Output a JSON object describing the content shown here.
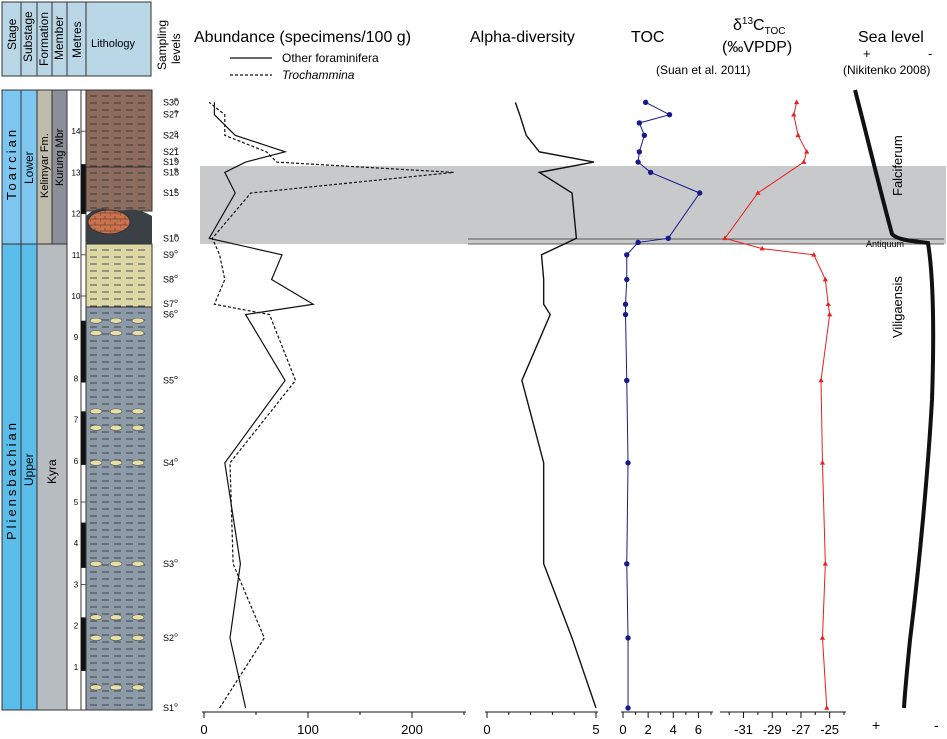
{
  "header": {
    "cols": [
      "Stage",
      "Substage",
      "Formation",
      "Member",
      "Metres"
    ],
    "lithology": "Lithology",
    "sampling": [
      "Sampling",
      "levels"
    ]
  },
  "stages": [
    {
      "name": "Toarcian",
      "substage": "Lower",
      "formation": "Kelimyar Fm.",
      "member": "Kurung Mbr",
      "top": 15,
      "bottom": 11
    },
    {
      "name": "Pliensbachian",
      "substage": "Upper",
      "formation": "Kyra",
      "member": "",
      "top": 11,
      "bottom": 0
    }
  ],
  "samples": [
    {
      "label": "S30",
      "m": 14.7
    },
    {
      "label": "S27",
      "m": 14.4
    },
    {
      "label": "S24",
      "m": 13.9
    },
    {
      "label": "S21",
      "m": 13.5
    },
    {
      "label": "S19",
      "m": 13.25
    },
    {
      "label": "S18",
      "m": 13.0
    },
    {
      "label": "S15",
      "m": 12.5
    },
    {
      "label": "S10",
      "m": 11.4
    },
    {
      "label": "S9",
      "m": 11.0
    },
    {
      "label": "S8",
      "m": 10.4
    },
    {
      "label": "S7",
      "m": 9.8
    },
    {
      "label": "S6",
      "m": 9.55
    },
    {
      "label": "S5",
      "m": 7.95
    },
    {
      "label": "S4",
      "m": 5.95
    },
    {
      "label": "S3",
      "m": 3.5
    },
    {
      "label": "S2",
      "m": 1.7
    },
    {
      "label": "S1",
      "m": 0.0
    }
  ],
  "metre_ticks": [
    1,
    2,
    3,
    4,
    5,
    6,
    7,
    8,
    9,
    10,
    11,
    12,
    13,
    14
  ],
  "panels": {
    "abundance": {
      "title": "Abundance (specimens/100 g)",
      "legend": [
        "Other foraminifera",
        "Trochammina"
      ],
      "ticks": [
        "0",
        "100",
        "200"
      ]
    },
    "alpha": {
      "title": "Alpha-diversity",
      "ticks": [
        "0",
        "5"
      ]
    },
    "toc": {
      "title": "TOC",
      "subtitle": "(Suan et al. 2011)",
      "ticks": [
        "0",
        "2",
        "4",
        "6"
      ]
    },
    "d13c": {
      "title_delta": "δ",
      "title_sup": "13",
      "title_c": "C",
      "title_sub": "TOC",
      "title_unit": "(‰VPDP)",
      "ticks": [
        "-31",
        "-29",
        "-27",
        "-25"
      ]
    },
    "sealevel": {
      "title": "Sea level",
      "subtitle": "(Nikitenko 2008)",
      "plus": "+",
      "minus": "-",
      "zones": [
        "Falciferum",
        "Viligaensis"
      ],
      "marker": "Antiquum"
    }
  },
  "colors": {
    "toc": "#1a1a8c",
    "d13c": "#e82020",
    "band": "#c8c9cb",
    "toarcian": "#7dc6ef",
    "pliens": "#5bbde9",
    "kelimyar": "#bfbbad",
    "kurung": "#8b8f99",
    "kyra": "#b7bcc1"
  },
  "chart_data": [
    {
      "type": "line",
      "title": "Abundance (specimens/100 g)",
      "xlabel": "",
      "ylabel": "Metres",
      "xlim": [
        0,
        250
      ],
      "ylim": [
        0,
        15
      ],
      "series": [
        {
          "name": "Other foraminifera",
          "points": [
            [
              40,
              0
            ],
            [
              25,
              1.7
            ],
            [
              35,
              3.5
            ],
            [
              20,
              5.95
            ],
            [
              78,
              7.95
            ],
            [
              40,
              9.55
            ],
            [
              105,
              9.8
            ],
            [
              65,
              10.4
            ],
            [
              75,
              11.0
            ],
            [
              5,
              11.4
            ],
            [
              30,
              12.5
            ],
            [
              20,
              13.0
            ],
            [
              40,
              13.25
            ],
            [
              78,
              13.5
            ],
            [
              30,
              13.9
            ],
            [
              10,
              14.4
            ],
            [
              10,
              14.7
            ]
          ]
        },
        {
          "name": "Trochammina",
          "points": [
            [
              15,
              0
            ],
            [
              58,
              1.7
            ],
            [
              28,
              3.5
            ],
            [
              25,
              5.95
            ],
            [
              88,
              7.95
            ],
            [
              63,
              9.55
            ],
            [
              10,
              9.8
            ],
            [
              20,
              10.4
            ],
            [
              15,
              11.0
            ],
            [
              8,
              11.4
            ],
            [
              45,
              12.5
            ],
            [
              240,
              13.0
            ],
            [
              70,
              13.25
            ],
            [
              60,
              13.5
            ],
            [
              20,
              13.9
            ],
            [
              20,
              14.4
            ],
            [
              5,
              14.7
            ]
          ]
        }
      ]
    },
    {
      "type": "line",
      "title": "Alpha-diversity",
      "xlim": [
        0,
        5
      ],
      "ylim": [
        0,
        15
      ],
      "series": [
        {
          "name": "",
          "points": [
            [
              5,
              0
            ],
            [
              3.9,
              1.7
            ],
            [
              2.6,
              3.5
            ],
            [
              2.6,
              5.95
            ],
            [
              1.6,
              7.95
            ],
            [
              2.9,
              9.55
            ],
            [
              2.6,
              9.8
            ],
            [
              2.6,
              10.4
            ],
            [
              2.5,
              11.0
            ],
            [
              4.1,
              11.4
            ],
            [
              3.9,
              12.5
            ],
            [
              2.4,
              13.0
            ],
            [
              4.9,
              13.25
            ],
            [
              2.4,
              13.5
            ],
            [
              1.8,
              13.9
            ],
            [
              1.5,
              14.4
            ],
            [
              1.3,
              14.7
            ]
          ]
        }
      ]
    },
    {
      "type": "line",
      "title": "TOC",
      "xlim": [
        0,
        7
      ],
      "ylim": [
        0,
        15
      ],
      "series": [
        {
          "name": "",
          "points": [
            [
              0.4,
              0
            ],
            [
              0.4,
              1.7
            ],
            [
              0.3,
              3.5
            ],
            [
              0.4,
              5.95
            ],
            [
              0.3,
              7.95
            ],
            [
              0.2,
              9.55
            ],
            [
              0.2,
              9.8
            ],
            [
              0.3,
              10.4
            ],
            [
              0.3,
              11.0
            ],
            [
              1.2,
              11.3
            ],
            [
              3.6,
              11.4
            ],
            [
              6.1,
              12.5
            ],
            [
              2.2,
              13.0
            ],
            [
              1.2,
              13.25
            ],
            [
              1.3,
              13.5
            ],
            [
              1.7,
              13.9
            ],
            [
              1.3,
              14.2
            ],
            [
              3.7,
              14.4
            ],
            [
              1.8,
              14.7
            ]
          ]
        }
      ]
    },
    {
      "type": "line",
      "title": "δ13C TOC (‰VPDP)",
      "xlim": [
        -32.5,
        -24
      ],
      "ylim": [
        0,
        15
      ],
      "series": [
        {
          "name": "",
          "points": [
            [
              -25.2,
              0
            ],
            [
              -25.5,
              1.7
            ],
            [
              -25.3,
              3.5
            ],
            [
              -25.5,
              5.95
            ],
            [
              -25.6,
              7.95
            ],
            [
              -25.0,
              9.55
            ],
            [
              -25.1,
              9.8
            ],
            [
              -25.3,
              10.4
            ],
            [
              -26.1,
              11.0
            ],
            [
              -29.7,
              11.15
            ],
            [
              -32.3,
              11.4
            ],
            [
              -30.0,
              12.5
            ],
            [
              -26.8,
              13.25
            ],
            [
              -26.6,
              13.5
            ],
            [
              -27.2,
              13.9
            ],
            [
              -27.5,
              14.4
            ],
            [
              -27.3,
              14.7
            ]
          ]
        }
      ]
    }
  ]
}
